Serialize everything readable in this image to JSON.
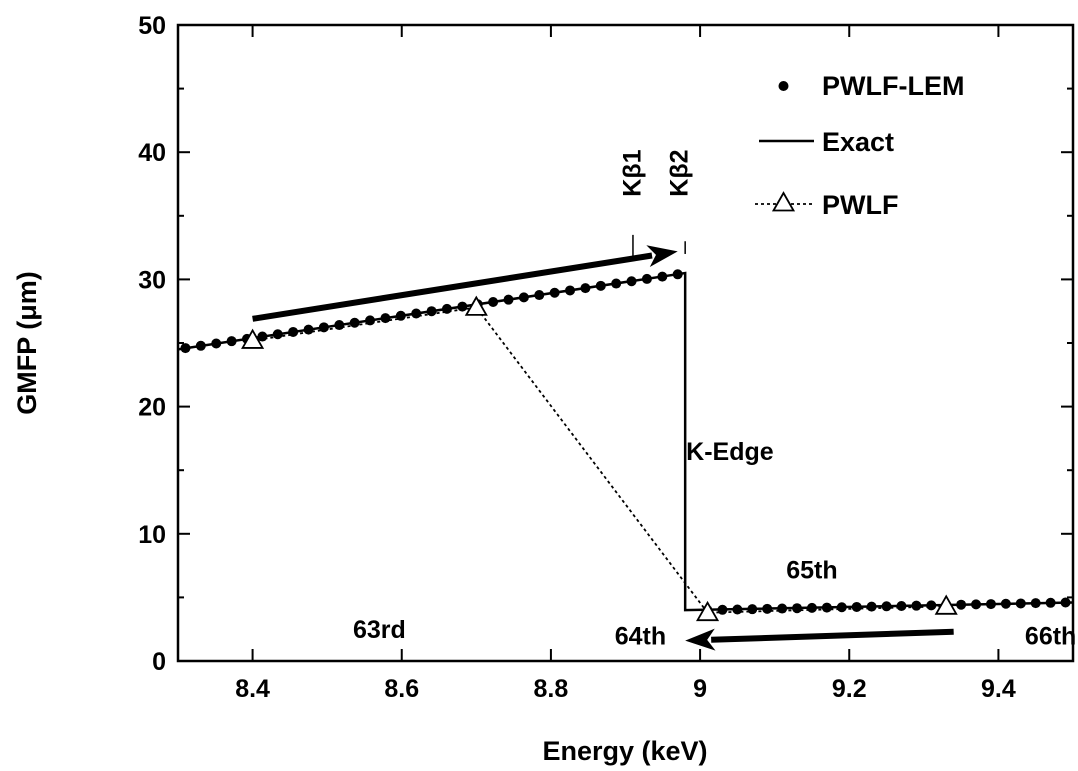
{
  "chart_data": {
    "type": "line",
    "xlabel": "Energy (keV)",
    "ylabel": "GMFP (μm)",
    "xlim": [
      8.3,
      9.5
    ],
    "ylim": [
      0,
      50
    ],
    "xticks": [
      8.4,
      8.6,
      8.8,
      9.0,
      9.2,
      9.4
    ],
    "xtick_labels": [
      "8.4",
      "8.6",
      "8.8",
      "9",
      "9.2",
      "9.4"
    ],
    "yticks": [
      0,
      10,
      20,
      30,
      40,
      50
    ],
    "ytick_labels": [
      "0",
      "10",
      "20",
      "30",
      "40",
      "50"
    ],
    "legend_position": "top-right",
    "series": [
      {
        "name": "PWLF-LEM",
        "marker": "dot",
        "segments": [
          {
            "x_start": 8.31,
            "x_end": 8.97,
            "y_start": 24.6,
            "y_end": 30.4,
            "points": 33
          },
          {
            "x_start": 9.01,
            "x_end": 9.49,
            "y_start": 4.0,
            "y_end": 4.6,
            "points": 25
          }
        ]
      },
      {
        "name": "Exact",
        "style": "solid",
        "x": [
          8.3,
          8.98,
          8.98,
          9.5
        ],
        "y": [
          24.5,
          30.5,
          4.0,
          4.6
        ]
      },
      {
        "name": "PWLF",
        "style": "dotted",
        "marker": "triangle",
        "x": [
          8.4,
          8.7,
          9.01,
          9.33
        ],
        "y": [
          25.2,
          27.8,
          3.8,
          4.3
        ]
      }
    ],
    "annotations": [
      {
        "text": "Kβ1",
        "x": 8.92,
        "y": 36.5,
        "rotated": true,
        "tick": {
          "x": 8.91,
          "y1": 31.5,
          "y2": 33.5
        }
      },
      {
        "text": "Kβ2",
        "x": 8.983,
        "y": 36.5,
        "rotated": true,
        "tick": {
          "x": 8.98,
          "y1": 32.0,
          "y2": 33.0
        }
      },
      {
        "text": "K-Edge",
        "x": 9.04,
        "y": 15.8
      },
      {
        "text": "65th",
        "x": 9.15,
        "y": 6.5
      },
      {
        "text": "63rd",
        "x": 8.57,
        "y": 1.8
      },
      {
        "text": "64th",
        "x": 8.92,
        "y": 1.3
      },
      {
        "text": "66th",
        "x": 9.47,
        "y": 1.3
      }
    ],
    "arrows": [
      {
        "from": [
          8.4,
          26.9
        ],
        "to": [
          8.97,
          32.2
        ]
      },
      {
        "from": [
          9.34,
          2.3
        ],
        "to": [
          8.98,
          1.6
        ]
      }
    ]
  }
}
